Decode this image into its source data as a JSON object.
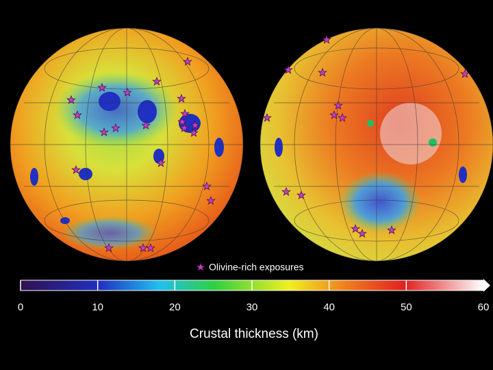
{
  "legend": {
    "label": "Olivine-rich exposures"
  },
  "colorbar": {
    "label": "Crustal thickness (km)",
    "lim": [
      0,
      60
    ],
    "ticks": [
      0,
      10,
      20,
      30,
      40,
      50,
      60
    ]
  }
}
